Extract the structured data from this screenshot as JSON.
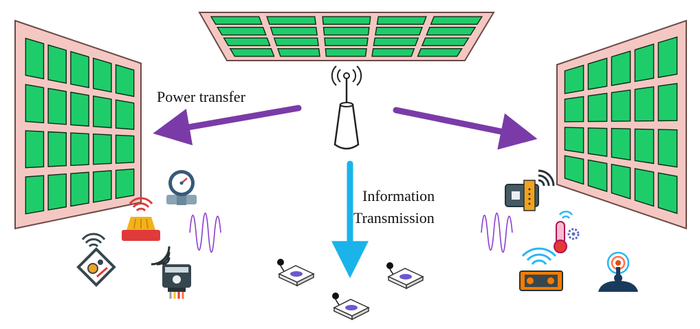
{
  "labels": {
    "power_transfer": "Power transfer",
    "information_line1": "Information",
    "information_line2": "Transmission"
  },
  "colors": {
    "panel_fill": "#f4c7c3",
    "panel_stroke": "#6b4a48",
    "element_fill": "#1fcc6a",
    "element_stroke": "#0a2a14",
    "power_arrow": "#7a3ba8",
    "info_arrow": "#1ab4ea",
    "signal_wave": "#8a3fd1",
    "tag_mark": "#6a5acd"
  },
  "icons": {
    "access_point": "cellular-tower-icon",
    "iot_devices_left": [
      "pressure-gauge-icon",
      "alarm-light-icon",
      "smart-controller-icon",
      "smart-meter-icon"
    ],
    "iot_devices_right": [
      "wireless-switch-icon",
      "temperature-sensor-icon",
      "radio-module-icon",
      "broadcast-antenna-icon"
    ],
    "sensor_tags": [
      "sensor-tag-icon",
      "sensor-tag-icon",
      "sensor-tag-icon"
    ]
  }
}
